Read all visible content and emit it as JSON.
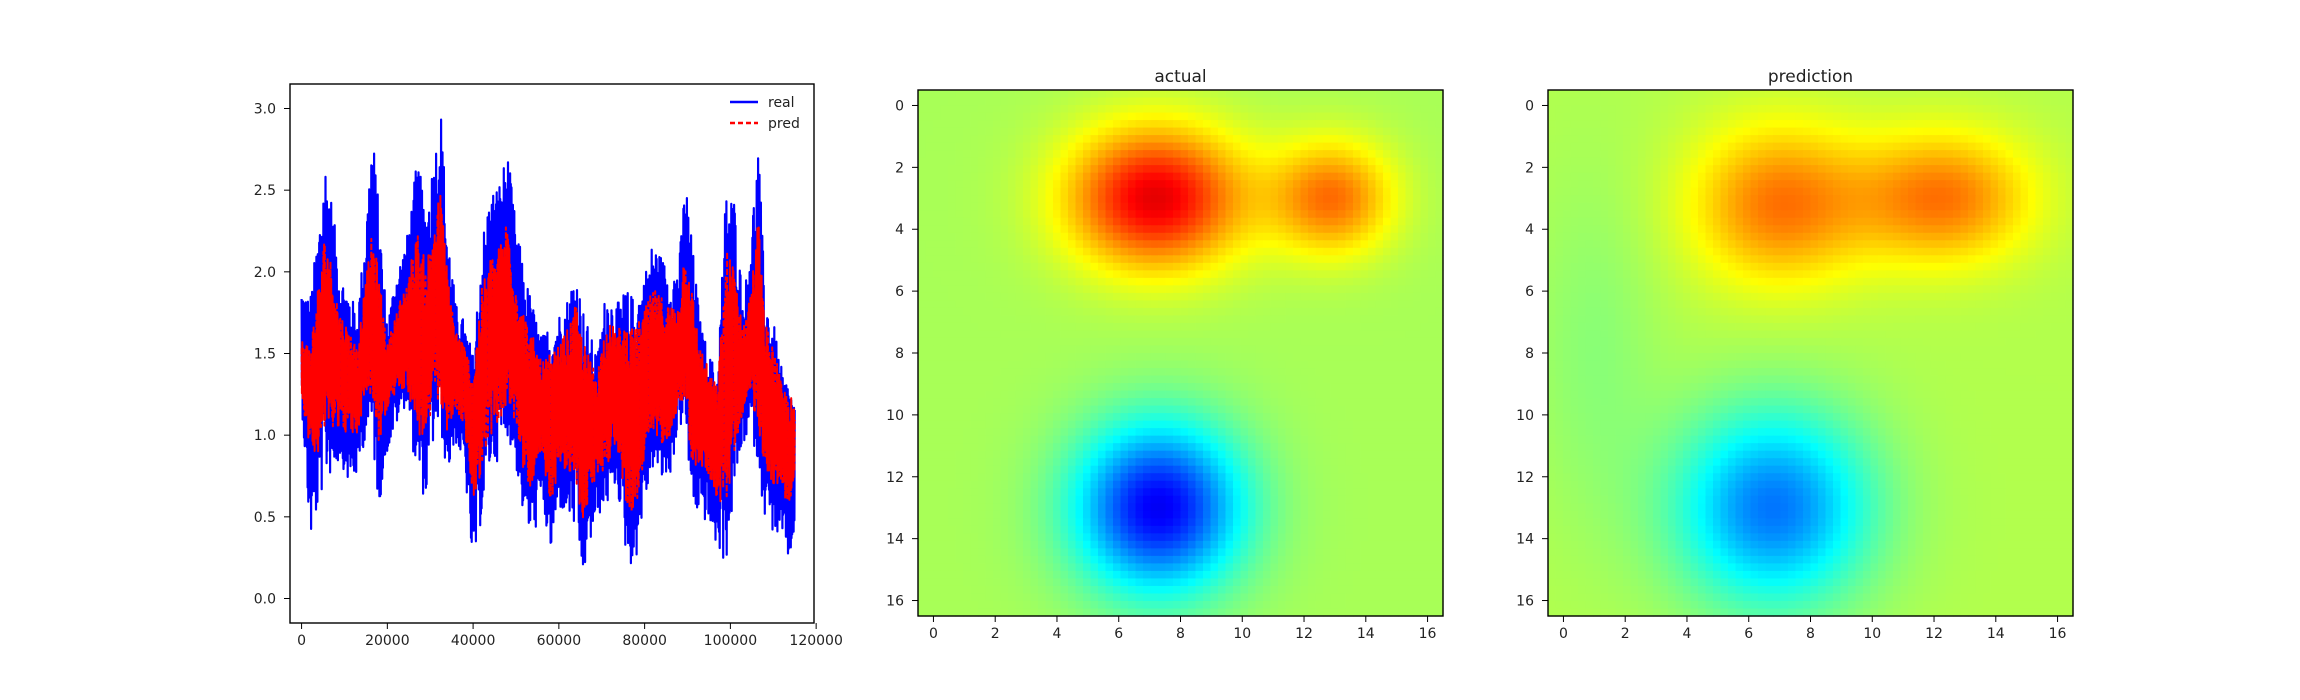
{
  "chart_data": [
    {
      "type": "line",
      "title": "",
      "xlabel": "",
      "ylabel": "",
      "xlim": [
        -2700,
        119500
      ],
      "ylim": [
        -0.15,
        3.15
      ],
      "x_ticks": [
        0,
        20000,
        40000,
        60000,
        80000,
        100000,
        120000
      ],
      "x_tick_labels": [
        "0",
        "20000",
        "40000",
        "60000",
        "80000",
        "100000",
        "120000"
      ],
      "y_ticks": [
        0.0,
        0.5,
        1.0,
        1.5,
        2.0,
        2.5,
        3.0
      ],
      "y_tick_labels": [
        "0.0",
        "0.5",
        "1.0",
        "1.5",
        "2.0",
        "2.5",
        "3.0"
      ],
      "grid": false,
      "legend_position": "top-right",
      "series": [
        {
          "name": "real",
          "color": "#0000ff",
          "style": "solid",
          "band_x": [
            0,
            2000,
            4000,
            5500,
            7000,
            9000,
            11000,
            13000,
            15000,
            16500,
            18000,
            20000,
            22000,
            24500,
            27000,
            29000,
            31000,
            32500,
            34000,
            36000,
            38000,
            40000,
            42000,
            44000,
            46000,
            48000,
            50000,
            52000,
            54000,
            56000,
            58000,
            60000,
            62000,
            64000,
            65500,
            67500,
            69000,
            71000,
            73500,
            75500,
            77500,
            79500,
            82000,
            84000,
            86000,
            88000,
            89500,
            91000,
            93000,
            95000,
            97000,
            99000,
            101000,
            103000,
            105000,
            106500,
            108000,
            110000,
            112000,
            114000,
            115000
          ],
          "band_low": [
            1.2,
            0.35,
            0.55,
            0.75,
            0.75,
            0.85,
            0.7,
            0.75,
            1.0,
            0.95,
            0.55,
            0.9,
            1.05,
            1.2,
            0.7,
            0.6,
            1.0,
            1.0,
            0.75,
            0.95,
            0.8,
            0.15,
            0.5,
            0.8,
            0.85,
            1.0,
            0.8,
            0.45,
            0.35,
            0.6,
            0.25,
            0.55,
            0.5,
            0.4,
            0.1,
            0.35,
            0.5,
            0.55,
            0.7,
            0.3,
            0.15,
            0.5,
            0.8,
            0.7,
            0.75,
            1.05,
            1.05,
            0.55,
            0.5,
            0.45,
            0.3,
            0.2,
            0.65,
            0.95,
            1.0,
            0.8,
            0.5,
            0.4,
            0.35,
            0.2,
            0.45
          ],
          "band_high": [
            1.9,
            1.85,
            2.3,
            2.7,
            2.45,
            2.0,
            1.9,
            1.75,
            2.3,
            2.9,
            2.4,
            1.7,
            2.0,
            2.2,
            2.7,
            2.4,
            2.75,
            3.0,
            2.3,
            1.8,
            1.7,
            1.5,
            2.2,
            2.5,
            2.55,
            2.75,
            2.3,
            2.0,
            1.8,
            1.6,
            1.7,
            1.75,
            1.85,
            2.05,
            1.8,
            1.6,
            1.5,
            1.9,
            1.8,
            1.9,
            1.85,
            1.95,
            2.2,
            2.1,
            2.0,
            2.05,
            2.6,
            2.2,
            1.7,
            1.5,
            1.4,
            2.55,
            2.45,
            1.8,
            2.3,
            2.8,
            1.9,
            1.7,
            1.4,
            1.3,
            1.2
          ]
        },
        {
          "name": "pred",
          "color": "#ff0000",
          "style": "dashed",
          "band_x": [
            0,
            2000,
            4000,
            5500,
            7000,
            9000,
            11000,
            13000,
            15000,
            16500,
            18000,
            20000,
            22000,
            24500,
            27000,
            29000,
            31000,
            32500,
            34000,
            36000,
            38000,
            40000,
            42000,
            44000,
            46000,
            48000,
            50000,
            52000,
            54000,
            56000,
            58000,
            60000,
            62000,
            64000,
            65500,
            67500,
            69000,
            71000,
            73500,
            75500,
            77500,
            79500,
            82000,
            84000,
            86000,
            88000,
            89500,
            91000,
            93000,
            95000,
            97000,
            99000,
            101000,
            103000,
            105000,
            106500,
            108000,
            110000,
            112000,
            114000,
            115000
          ],
          "band_low": [
            1.25,
            0.9,
            0.9,
            1.0,
            1.05,
            1.05,
            1.0,
            1.0,
            1.25,
            1.2,
            0.95,
            1.15,
            1.25,
            1.3,
            1.0,
            0.95,
            1.2,
            1.2,
            1.0,
            1.15,
            1.05,
            0.55,
            0.8,
            1.0,
            1.05,
            1.15,
            1.05,
            0.75,
            0.65,
            0.85,
            0.55,
            0.8,
            0.75,
            0.7,
            0.45,
            0.65,
            0.75,
            0.8,
            0.95,
            0.6,
            0.5,
            0.75,
            1.0,
            0.95,
            1.0,
            1.2,
            1.2,
            0.8,
            0.8,
            0.75,
            0.6,
            0.55,
            0.9,
            1.15,
            1.2,
            1.05,
            0.8,
            0.7,
            0.65,
            0.55,
            0.75
          ],
          "band_high": [
            1.6,
            1.55,
            1.95,
            2.25,
            2.05,
            1.75,
            1.65,
            1.55,
            1.95,
            2.25,
            2.0,
            1.55,
            1.75,
            1.95,
            2.25,
            2.05,
            2.35,
            2.5,
            2.0,
            1.65,
            1.55,
            1.4,
            1.9,
            2.1,
            2.15,
            2.35,
            1.95,
            1.75,
            1.6,
            1.45,
            1.5,
            1.55,
            1.65,
            1.8,
            1.6,
            1.45,
            1.4,
            1.7,
            1.65,
            1.7,
            1.65,
            1.75,
            1.9,
            1.85,
            1.8,
            1.8,
            2.2,
            1.9,
            1.55,
            1.4,
            1.3,
            2.15,
            2.05,
            1.65,
            1.95,
            2.35,
            1.7,
            1.55,
            1.3,
            1.25,
            1.15
          ]
        }
      ]
    },
    {
      "type": "heatmap",
      "title": "actual",
      "colormap": "jet",
      "vmin": -1.0,
      "vmax": 1.0,
      "xlim": [
        -0.5,
        16.5
      ],
      "ylim": [
        16.5,
        -0.5
      ],
      "x_ticks": [
        0,
        2,
        4,
        6,
        8,
        10,
        12,
        14,
        16
      ],
      "x_tick_labels": [
        "0",
        "2",
        "4",
        "6",
        "8",
        "10",
        "12",
        "14",
        "16"
      ],
      "y_ticks": [
        0,
        2,
        4,
        6,
        8,
        10,
        12,
        14,
        16
      ],
      "y_tick_labels": [
        "0",
        "2",
        "4",
        "6",
        "8",
        "10",
        "12",
        "14",
        "16"
      ],
      "background_value": 0.08,
      "features": [
        {
          "x": 7.2,
          "y": 3.0,
          "amplitude": 0.72,
          "sigma_x": 2.0,
          "sigma_y": 1.6
        },
        {
          "x": 12.9,
          "y": 3.0,
          "amplitude": 0.45,
          "sigma_x": 1.4,
          "sigma_y": 1.3
        },
        {
          "x": 7.3,
          "y": 13.0,
          "amplitude": -0.85,
          "sigma_x": 1.9,
          "sigma_y": 1.9
        }
      ]
    },
    {
      "type": "heatmap",
      "title": "prediction",
      "colormap": "jet",
      "vmin": -1.0,
      "vmax": 1.0,
      "xlim": [
        -0.5,
        16.5
      ],
      "ylim": [
        16.5,
        -0.5
      ],
      "x_ticks": [
        0,
        2,
        4,
        6,
        8,
        10,
        12,
        14,
        16
      ],
      "x_tick_labels": [
        "0",
        "2",
        "4",
        "6",
        "8",
        "10",
        "12",
        "14",
        "16"
      ],
      "y_ticks": [
        0,
        2,
        4,
        6,
        8,
        10,
        12,
        14,
        16
      ],
      "y_tick_labels": [
        "0",
        "2",
        "4",
        "6",
        "8",
        "10",
        "12",
        "14",
        "16"
      ],
      "background_value": 0.1,
      "features": [
        {
          "x": 7.0,
          "y": 3.2,
          "amplitude": 0.42,
          "sigma_x": 2.0,
          "sigma_y": 1.8
        },
        {
          "x": 12.3,
          "y": 3.0,
          "amplitude": 0.42,
          "sigma_x": 2.0,
          "sigma_y": 1.5
        },
        {
          "x": 6.8,
          "y": 13.0,
          "amplitude": -0.62,
          "sigma_x": 2.2,
          "sigma_y": 2.2
        },
        {
          "x": 1.0,
          "y": 8.0,
          "amplitude": -0.08,
          "sigma_x": 1.4,
          "sigma_y": 4.0
        }
      ]
    }
  ]
}
